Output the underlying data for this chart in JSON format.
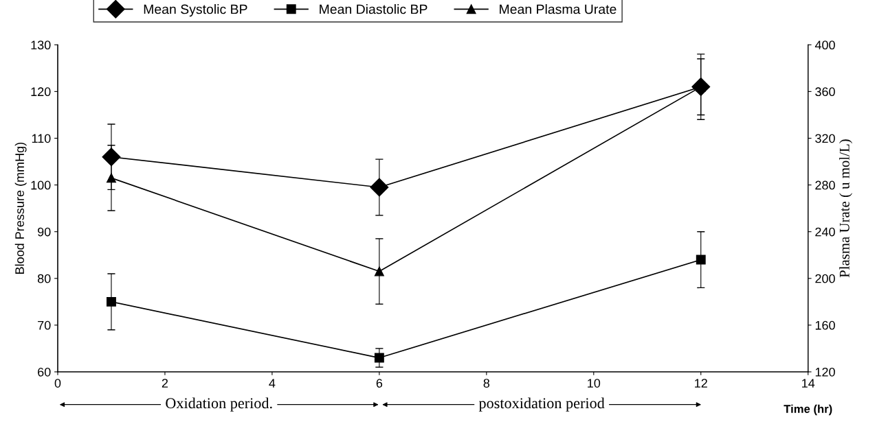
{
  "chart_data": {
    "type": "line",
    "xlabel": "Time (hr)",
    "ylabel": "Blood Pressure (mmHg)",
    "y2label": "Plasma Urate ( u mol/L)",
    "x": [
      1,
      6,
      12
    ],
    "series": [
      {
        "name": "Mean Systolic BP",
        "color": "#000000",
        "marker": "diamond",
        "values": [
          106,
          99.5,
          121
        ],
        "errors": [
          7,
          6,
          6
        ]
      },
      {
        "name": "Mean Diastolic BP",
        "color": "#000000",
        "marker": "square",
        "values": [
          75,
          63,
          84
        ],
        "errors": [
          6,
          2,
          6
        ]
      },
      {
        "name": "Mean Plasma Urate",
        "color": "#000000",
        "marker": "triangle",
        "axis": "y2",
        "values": [
          286,
          206,
          364
        ],
        "errors": [
          28,
          28,
          28
        ]
      }
    ],
    "xlim": [
      0,
      14
    ],
    "xticks": [
      0,
      2,
      4,
      6,
      8,
      10,
      12,
      14
    ],
    "ylim": [
      60,
      130
    ],
    "yticks": [
      60,
      70,
      80,
      90,
      100,
      110,
      120,
      130
    ],
    "y2lim": [
      120,
      400
    ],
    "y2ticks": [
      120,
      160,
      200,
      240,
      280,
      320,
      360,
      400
    ],
    "annotations": [
      "Oxidation period.",
      "postoxidation period"
    ],
    "grid": false,
    "legend": "top",
    "line_style": "solid"
  }
}
